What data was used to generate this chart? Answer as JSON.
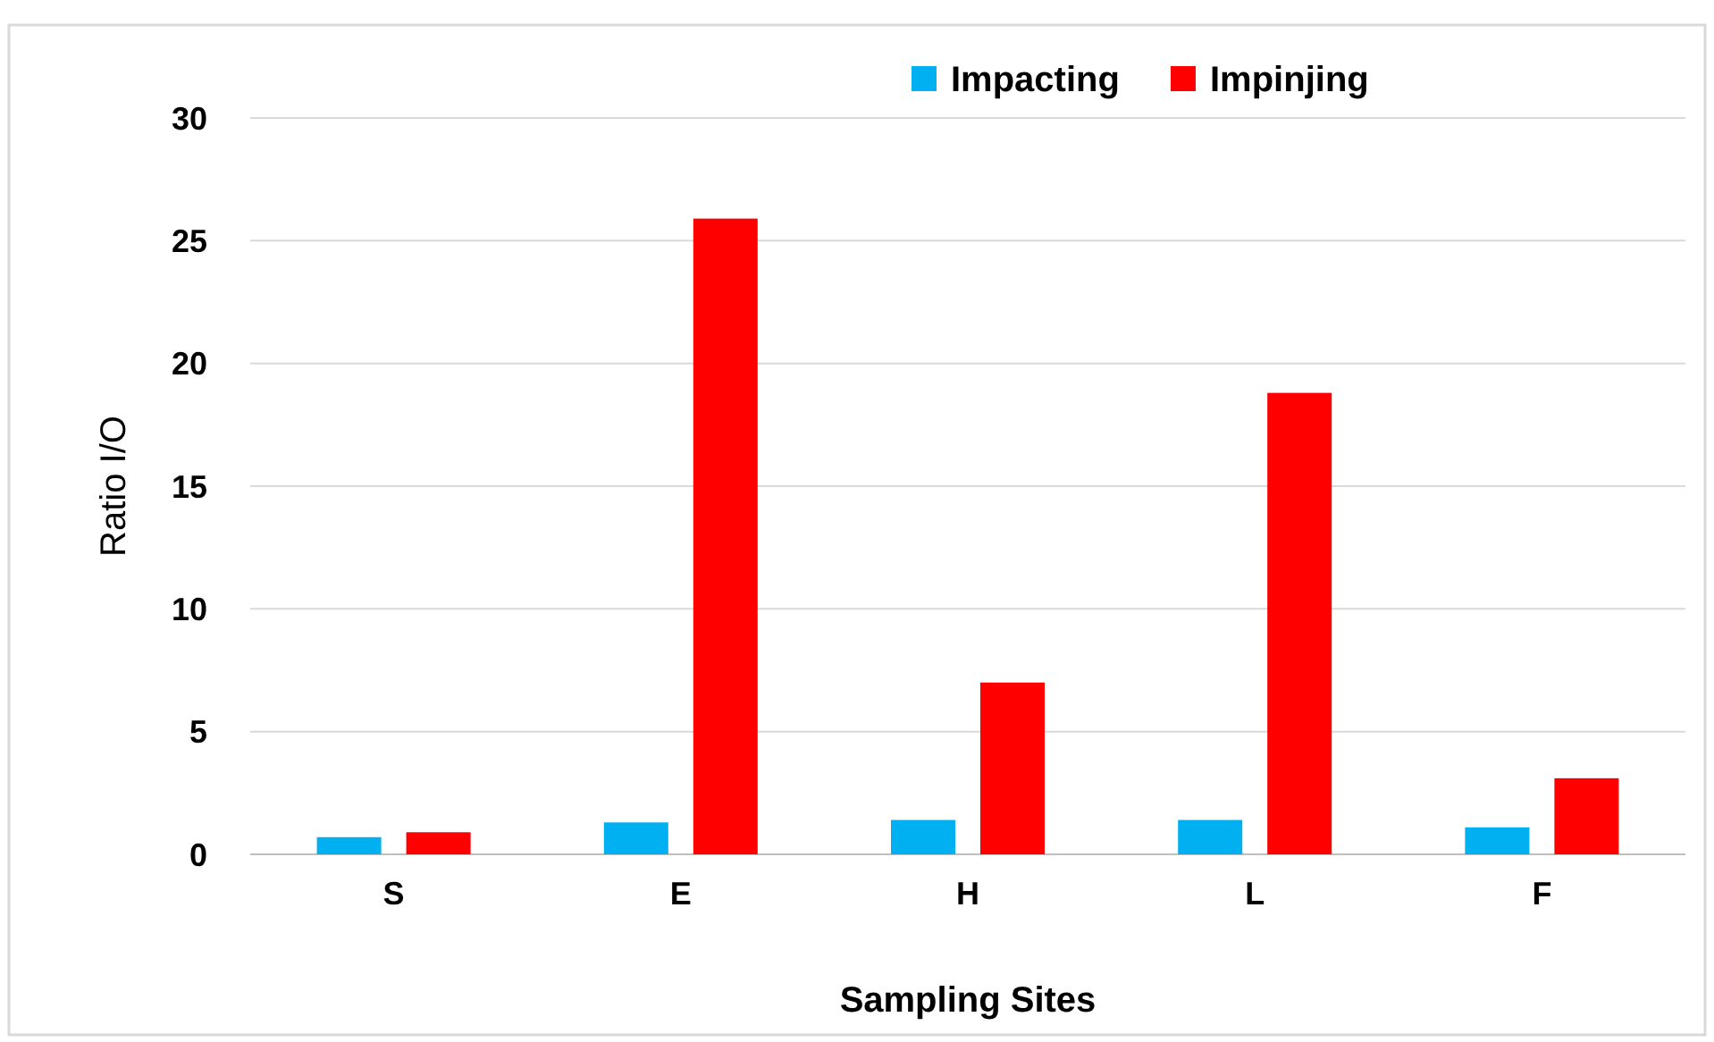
{
  "chart_data": {
    "type": "bar",
    "xlabel": "Sampling Sites",
    "ylabel": "Ratio I/O",
    "categories": [
      "S",
      "E",
      "H",
      "L",
      "F"
    ],
    "series": [
      {
        "name": "Impacting",
        "color": "#00b0f0",
        "values": [
          0.7,
          1.3,
          1.4,
          1.4,
          1.1
        ]
      },
      {
        "name": "Impinjing",
        "color": "#ff0000",
        "values": [
          0.9,
          25.9,
          7,
          18.8,
          3.1
        ]
      }
    ],
    "ylim": [
      0,
      30
    ],
    "yticks": [
      0,
      5,
      10,
      15,
      20,
      25,
      30
    ],
    "grid": "y",
    "legend": "top right"
  }
}
